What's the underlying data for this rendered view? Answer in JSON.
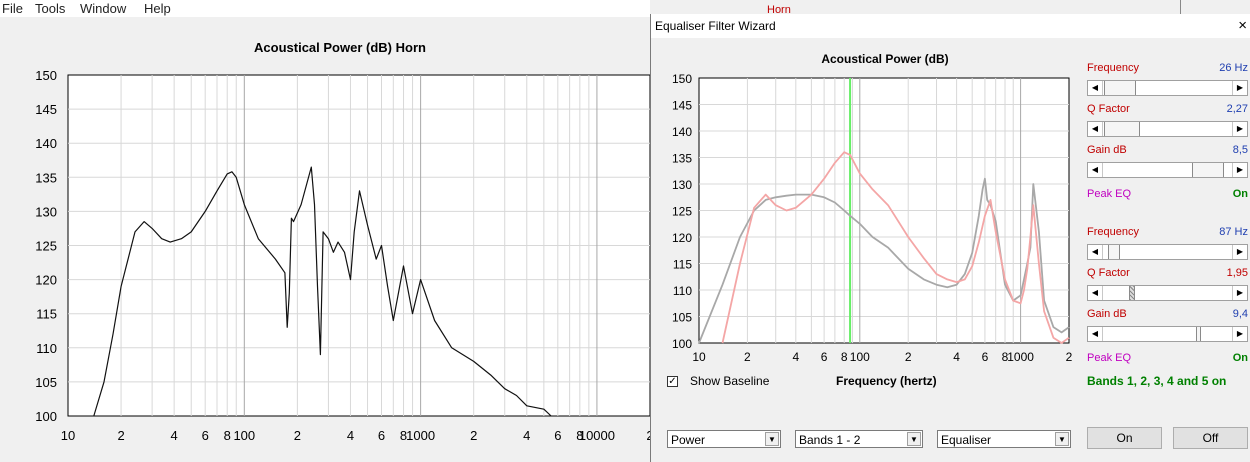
{
  "menu": [
    "File",
    "Tools",
    "Window",
    "Help"
  ],
  "main_chart_title": "Acoustical Power (dB)   Horn",
  "background_label": "Horn",
  "dialog": {
    "title": "Equaliser Filter Wizard",
    "close": "×",
    "chart_title": "Acoustical Power (dB)",
    "show_baseline": "Show Baseline",
    "frequency_axis_label": "Frequency (hertz)",
    "bands_status": "Bands 1, 2, 3, 4 and 5 on",
    "band1": {
      "frequency_label": "Frequency",
      "frequency_value": "26 Hz",
      "q_label": "Q Factor",
      "q_value": "2,27",
      "gain_label": "Gain  dB",
      "gain_value": "8,5",
      "type_label": "Peak EQ",
      "state": "On"
    },
    "band2": {
      "frequency_label": "Frequency",
      "frequency_value": "87 Hz",
      "q_label": "Q Factor",
      "q_value": "1,95",
      "gain_label": "Gain  dB",
      "gain_value": "9,4",
      "type_label": "Peak EQ",
      "state": "On"
    },
    "combos": [
      "Power",
      "Bands 1 - 2",
      "Equaliser"
    ],
    "on_button": "On",
    "off_button": "Off"
  },
  "colors": {
    "label_red": "#c00000",
    "value_blue": "#1f3fb0",
    "peak_magenta": "#c000c0",
    "on_green": "#008000",
    "eq_trace": "#f4a6a6",
    "baseline_trace": "#a8a8a8",
    "marker": "#66ee66"
  },
  "chart_data": [
    {
      "type": "line",
      "title": "Acoustical Power (dB)   Horn",
      "xlabel": "",
      "ylabel": "",
      "xscale": "log",
      "xlim": [
        10,
        20000
      ],
      "ylim": [
        100,
        150
      ],
      "y_ticks": [
        100,
        105,
        110,
        115,
        120,
        125,
        130,
        135,
        140,
        145,
        150
      ],
      "x_tick_labels": [
        "10",
        "2",
        "4",
        "6",
        "8",
        "100",
        "2",
        "4",
        "6",
        "8",
        "1000",
        "2",
        "4",
        "6",
        "8",
        "10000",
        "2"
      ],
      "series": [
        {
          "x": [
            14,
            16,
            18,
            20,
            24,
            27,
            30,
            34,
            38,
            44,
            50,
            60,
            70,
            80,
            85,
            90,
            100,
            120,
            150,
            170,
            175,
            180,
            185,
            190,
            210,
            240,
            250,
            260,
            270,
            280,
            300,
            320,
            340,
            370,
            400,
            420,
            450,
            500,
            560,
            600,
            650,
            700,
            800,
            900,
            1000,
            1200,
            1500,
            2000,
            2500,
            3000,
            3500,
            4000,
            5000,
            5500
          ],
          "y": [
            100,
            105,
            112,
            119,
            127,
            128.5,
            127.5,
            126,
            125.5,
            126,
            127,
            130,
            133,
            135.5,
            135.8,
            135,
            131,
            126,
            123,
            121,
            113,
            118,
            129,
            128.5,
            131,
            136.5,
            131,
            119,
            109,
            127,
            126,
            124,
            125.5,
            124,
            120,
            127,
            133,
            128,
            123,
            125,
            119,
            114,
            122,
            115,
            120,
            114,
            110,
            108,
            106,
            104,
            103,
            101.5,
            101,
            100
          ]
        }
      ]
    },
    {
      "type": "line",
      "title": "Acoustical Power (dB)",
      "xlabel": "Frequency (hertz)",
      "ylabel": "",
      "xscale": "log",
      "xlim": [
        10,
        2000
      ],
      "ylim": [
        100,
        150
      ],
      "y_ticks": [
        100,
        105,
        110,
        115,
        120,
        125,
        130,
        135,
        140,
        145,
        150
      ],
      "x_tick_labels": [
        "10",
        "2",
        "4",
        "6",
        "8",
        "100",
        "2",
        "4",
        "6",
        "8",
        "1000",
        "2"
      ],
      "marker_x": 87,
      "series": [
        {
          "x": [
            10,
            14,
            18,
            22,
            26,
            30,
            35,
            40,
            50,
            60,
            70,
            80,
            87,
            100,
            120,
            150,
            200,
            250,
            300,
            350,
            400,
            450,
            500,
            550,
            580,
            600,
            620,
            650,
            700,
            800,
            900,
            1000,
            1050,
            1100,
            1150,
            1200,
            1300,
            1400,
            1600,
            1800,
            2000
          ],
          "y": [
            100,
            111,
            120,
            125,
            127,
            127.5,
            127.8,
            128,
            128,
            127.5,
            126.5,
            125,
            124,
            122.5,
            120,
            118,
            114,
            112,
            111,
            110.5,
            111,
            113,
            117,
            124,
            129,
            131,
            127,
            126,
            123,
            111,
            108,
            109,
            112,
            115,
            118,
            130,
            121,
            108,
            103,
            102,
            103
          ]
        },
        {
          "x": [
            14,
            18,
            22,
            26,
            30,
            35,
            40,
            50,
            60,
            70,
            80,
            87,
            100,
            120,
            150,
            200,
            250,
            300,
            350,
            400,
            450,
            500,
            550,
            600,
            650,
            700,
            800,
            900,
            1000,
            1050,
            1100,
            1150,
            1200,
            1300,
            1400,
            1600,
            1800,
            2000
          ],
          "y": [
            100,
            115,
            125.5,
            128,
            126,
            125,
            125.5,
            128,
            131,
            134,
            136,
            135.5,
            132,
            129,
            126,
            120,
            116,
            113,
            112,
            111.5,
            112,
            114.5,
            119,
            124,
            127,
            121,
            112,
            108,
            107.5,
            110,
            114,
            120,
            126,
            115,
            106,
            101,
            100,
            101
          ]
        }
      ]
    }
  ]
}
